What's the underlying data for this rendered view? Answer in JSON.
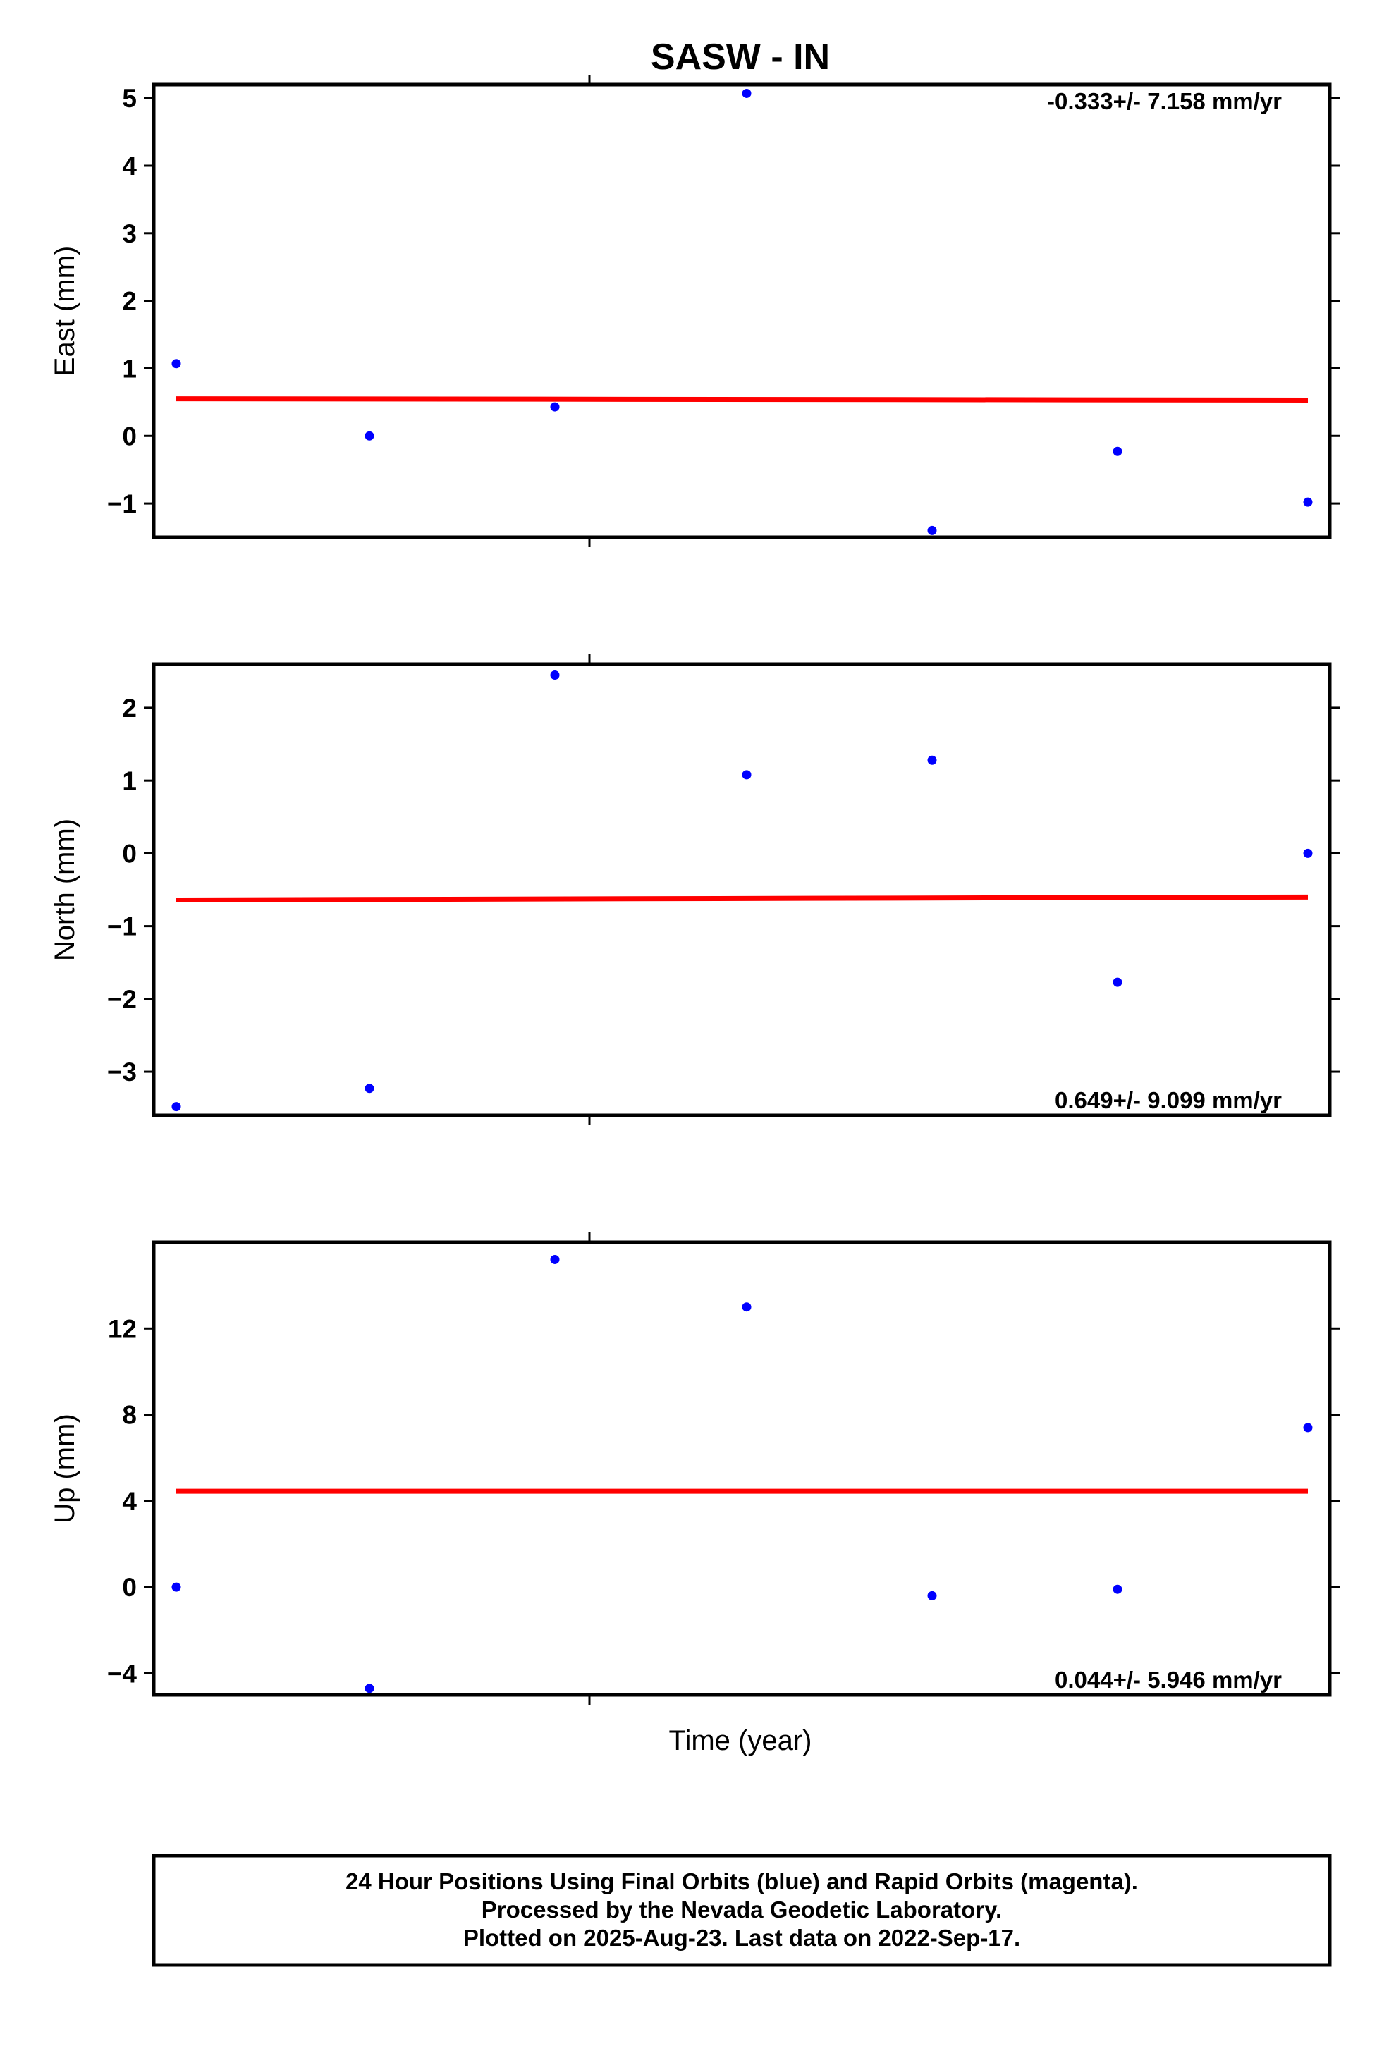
{
  "chart_data": {
    "type": "scatter",
    "title": "SASW - IN",
    "xlabel": "Time (year)",
    "colors": {
      "final_points": "#0000ff",
      "trend_line": "#ff0000",
      "frame": "#000000"
    },
    "panels": [
      {
        "ylabel": "East (mm)",
        "ylim": [
          -1.5,
          5.2
        ],
        "yticks": [
          -1,
          0,
          1,
          2,
          3,
          4,
          5
        ],
        "ytick_labels": [
          "−1",
          "0",
          "1",
          "2",
          "3",
          "4",
          "5"
        ],
        "rate_text": "-0.333+/- 7.158 mm/yr",
        "rate_position": "top-right",
        "points": [
          1.07,
          0.0,
          0.43,
          5.07,
          -1.4,
          -0.23,
          -0.98
        ],
        "trend": [
          0.55,
          0.53
        ]
      },
      {
        "ylabel": "North (mm)",
        "ylim": [
          -3.6,
          2.6
        ],
        "yticks": [
          -3,
          -2,
          -1,
          0,
          1,
          2
        ],
        "ytick_labels": [
          "−3",
          "−2",
          "−1",
          "0",
          "1",
          "2"
        ],
        "rate_text": "0.649+/- 9.099 mm/yr",
        "rate_position": "bottom-right",
        "points": [
          -3.48,
          -3.23,
          2.45,
          1.08,
          1.28,
          -1.77,
          0.0
        ],
        "trend": [
          -0.64,
          -0.6
        ]
      },
      {
        "ylabel": "Up (mm)",
        "ylim": [
          -5.0,
          16.0
        ],
        "yticks": [
          -4,
          0,
          4,
          8,
          12
        ],
        "ytick_labels": [
          "−4",
          "0",
          "4",
          "8",
          "12"
        ],
        "rate_text": "0.044+/- 5.946 mm/yr",
        "rate_position": "bottom-right",
        "points": [
          0.0,
          -4.7,
          15.2,
          13.0,
          -0.4,
          -0.1,
          7.4
        ],
        "trend": [
          4.45,
          4.45
        ]
      }
    ]
  },
  "footer": {
    "line1": "24 Hour Positions Using Final Orbits (blue) and Rapid Orbits (magenta).",
    "line2": "Processed by the Nevada Geodetic Laboratory.",
    "line3": "Plotted on 2025-Aug-23. Last data on 2022-Sep-17."
  }
}
